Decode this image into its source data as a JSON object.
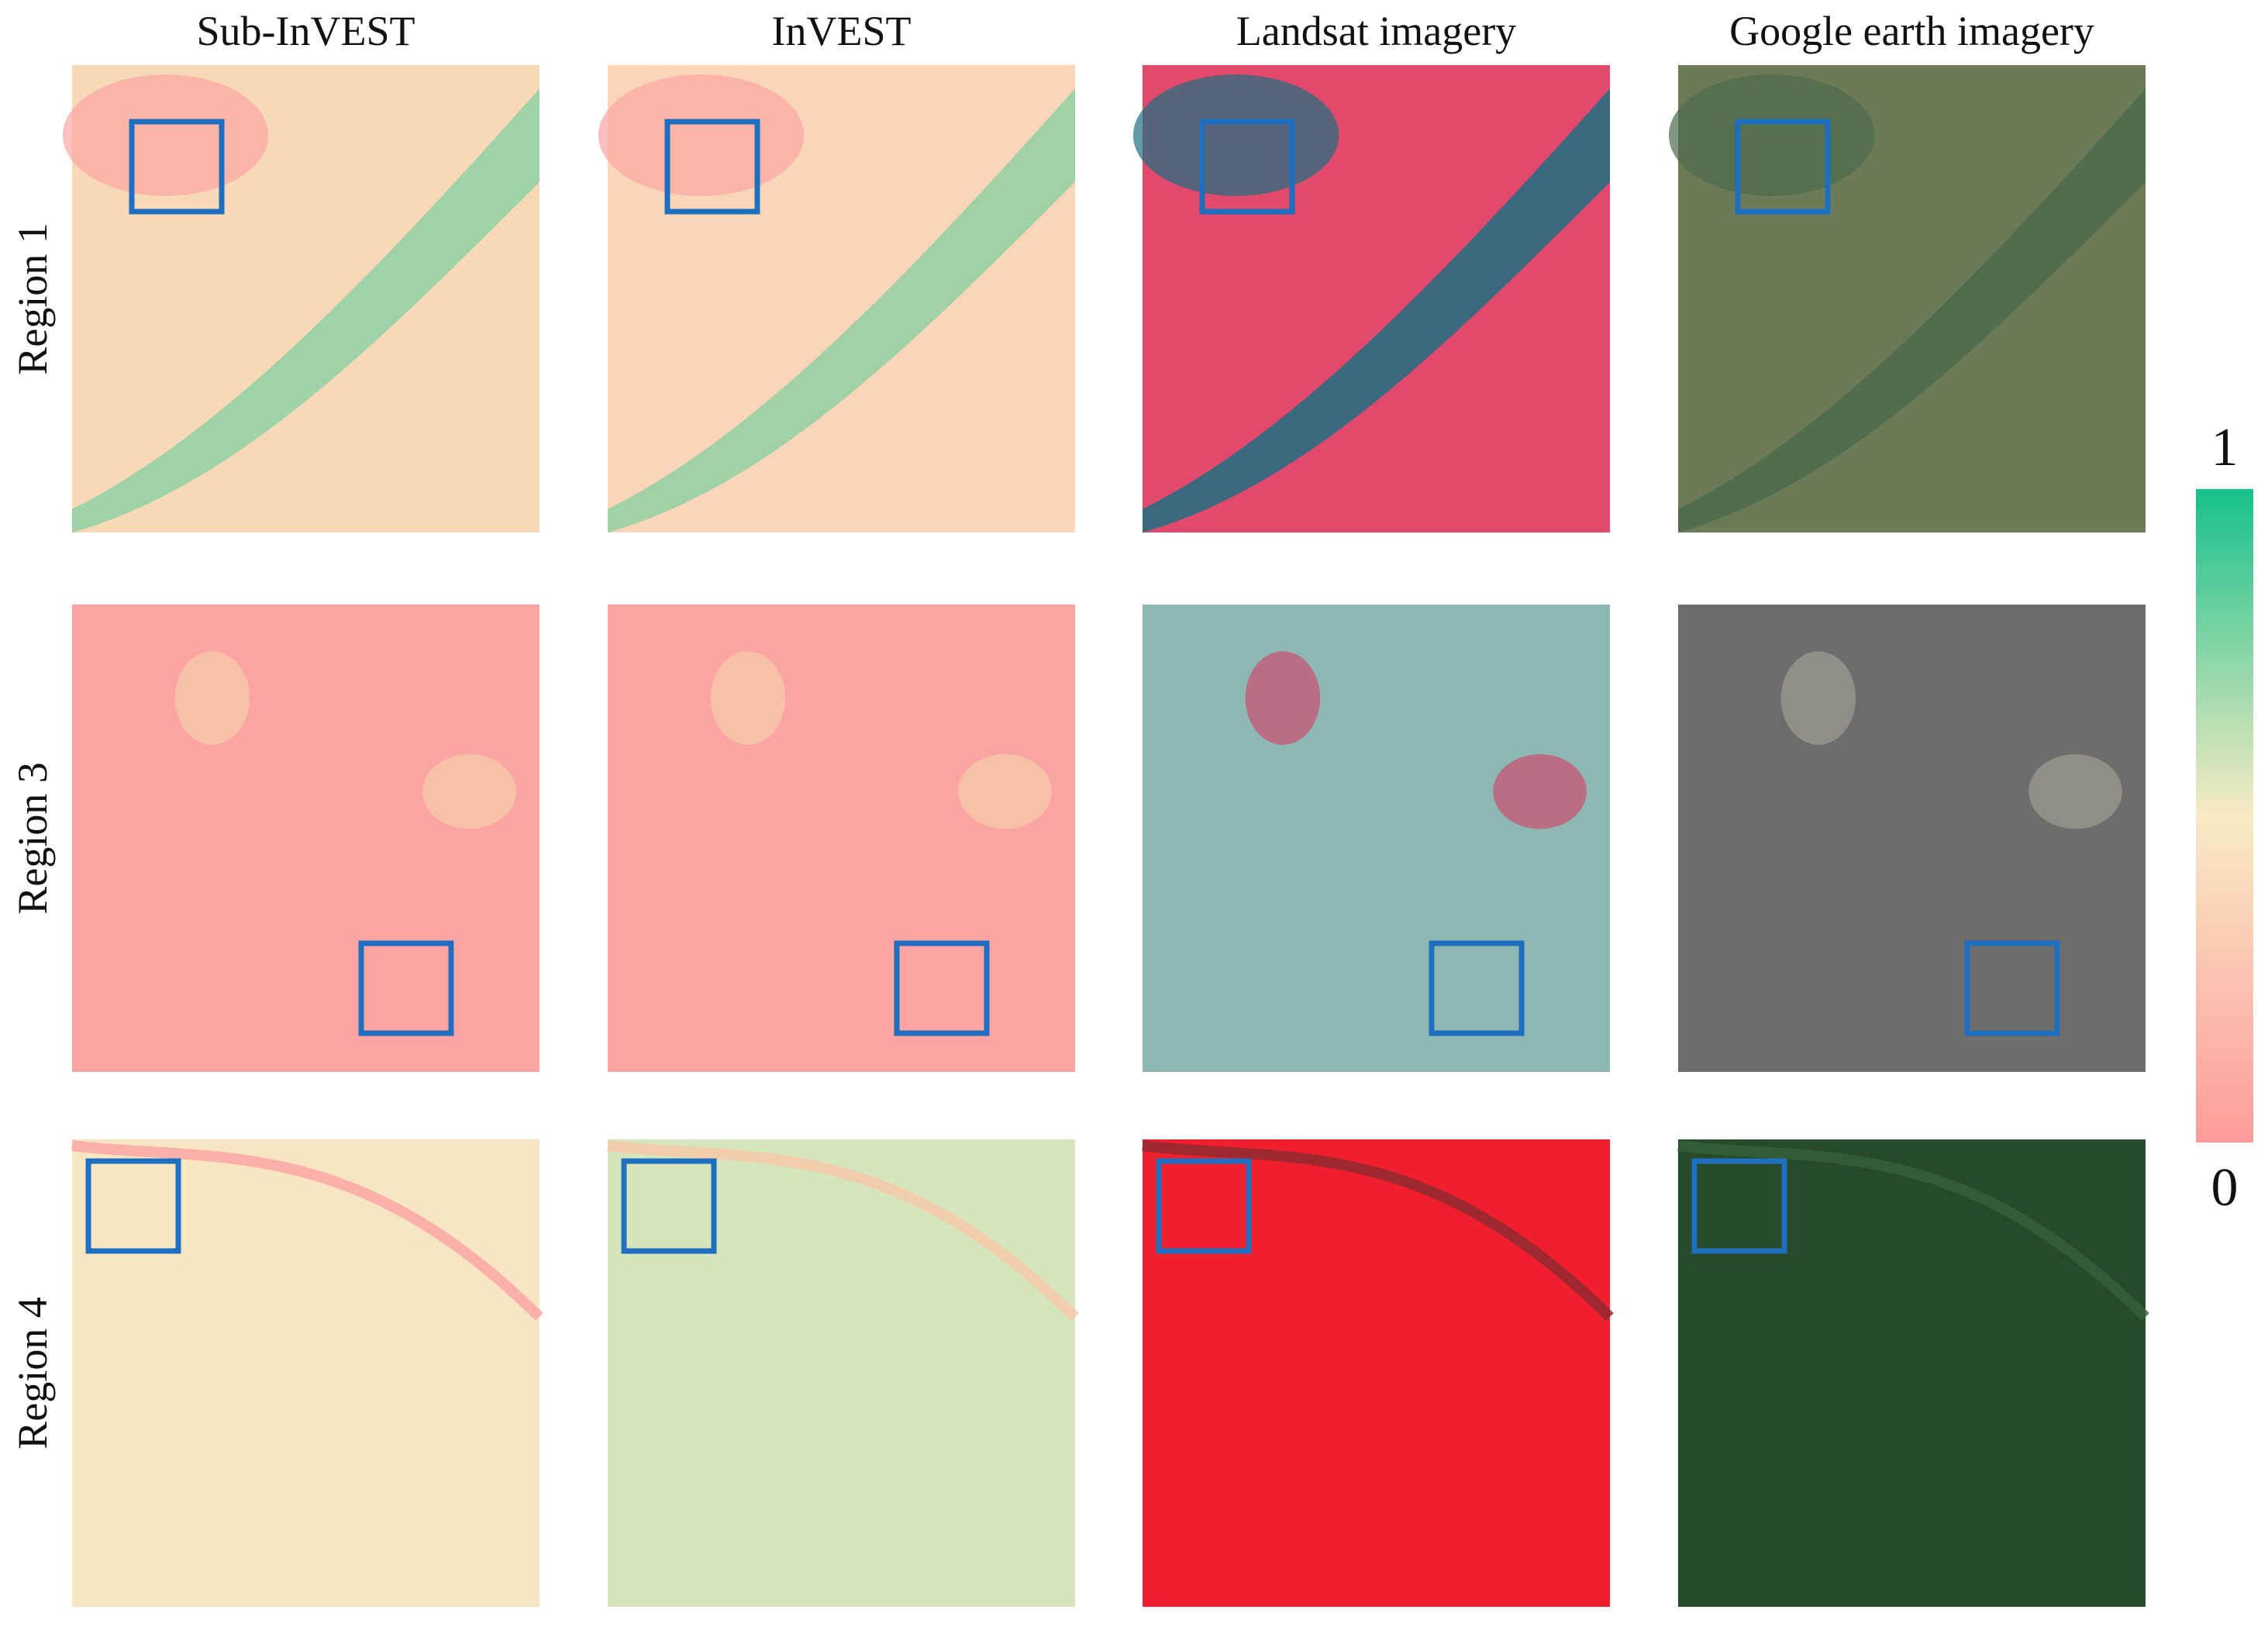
{
  "columns": [
    "Sub-InVEST",
    "InVEST",
    "Landsat imagery",
    "Google earth imagery"
  ],
  "rows": [
    "Region 1",
    "Region 3",
    "Region 4"
  ],
  "colorbar": {
    "top_label": "1",
    "bottom_label": "0"
  }
}
